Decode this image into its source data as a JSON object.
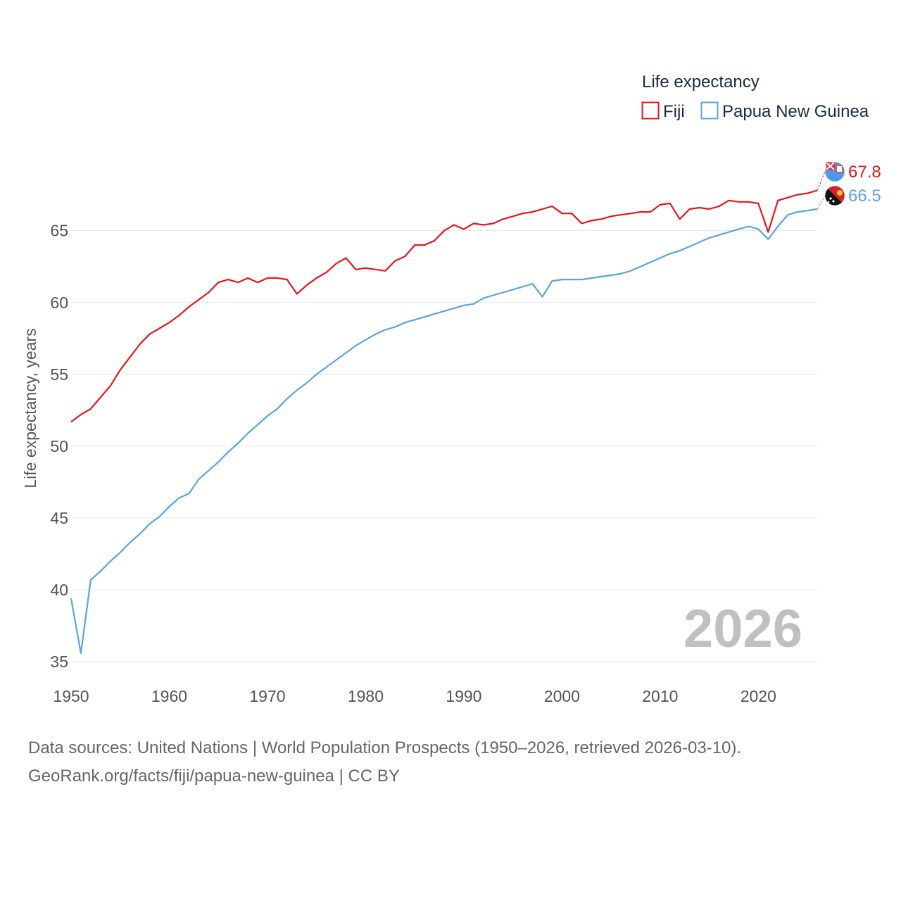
{
  "chart_data": {
    "type": "line",
    "legend_title": "Life expectancy",
    "ylabel": "Life expectancy, years",
    "xlabel": "",
    "xlim": [
      1950,
      2026
    ],
    "ylim": [
      33,
      69
    ],
    "x_ticks": [
      1950,
      1960,
      1970,
      1980,
      1990,
      2000,
      2010,
      2020
    ],
    "y_ticks": [
      35,
      40,
      45,
      50,
      55,
      60,
      65
    ],
    "current_year_label": "2026",
    "grid": true,
    "legend_position": "top-right",
    "x": [
      1950,
      1951,
      1952,
      1953,
      1954,
      1955,
      1956,
      1957,
      1958,
      1959,
      1960,
      1961,
      1962,
      1963,
      1964,
      1965,
      1966,
      1967,
      1968,
      1969,
      1970,
      1971,
      1972,
      1973,
      1974,
      1975,
      1976,
      1977,
      1978,
      1979,
      1980,
      1981,
      1982,
      1983,
      1984,
      1985,
      1986,
      1987,
      1988,
      1989,
      1990,
      1991,
      1992,
      1993,
      1994,
      1995,
      1996,
      1997,
      1998,
      1999,
      2000,
      2001,
      2002,
      2003,
      2004,
      2005,
      2006,
      2007,
      2008,
      2009,
      2010,
      2011,
      2012,
      2013,
      2014,
      2015,
      2016,
      2017,
      2018,
      2019,
      2020,
      2021,
      2022,
      2023,
      2024,
      2025,
      2026
    ],
    "series": [
      {
        "name": "Fiji",
        "color": "#e8151b",
        "end_value_label": "67.8",
        "flag_icon": "fiji-flag-icon",
        "values": [
          51.7,
          52.2,
          52.6,
          53.4,
          54.2,
          55.3,
          56.2,
          57.1,
          57.8,
          58.2,
          58.6,
          59.1,
          59.7,
          60.2,
          60.7,
          61.4,
          61.6,
          61.4,
          61.7,
          61.4,
          61.7,
          61.7,
          61.6,
          60.6,
          61.2,
          61.7,
          62.1,
          62.7,
          63.1,
          62.3,
          62.4,
          62.3,
          62.2,
          62.9,
          63.2,
          64.0,
          64.0,
          64.3,
          65.0,
          65.4,
          65.1,
          65.5,
          65.4,
          65.5,
          65.8,
          66.0,
          66.2,
          66.3,
          66.5,
          66.7,
          66.2,
          66.2,
          65.5,
          65.7,
          65.8,
          66.0,
          66.1,
          66.2,
          66.3,
          66.3,
          66.8,
          66.9,
          65.8,
          66.5,
          66.6,
          66.5,
          66.7,
          67.1,
          67.0,
          67.0,
          66.9,
          64.9,
          67.1,
          67.3,
          67.5,
          67.6,
          67.8
        ]
      },
      {
        "name": "Papua New Guinea",
        "color": "#5ba3e5",
        "end_value_label": "66.5",
        "flag_icon": "papua-new-guinea-flag-icon",
        "values": [
          39.4,
          35.6,
          40.7,
          41.3,
          42.0,
          42.6,
          43.3,
          43.9,
          44.6,
          45.1,
          45.8,
          46.4,
          46.7,
          47.7,
          48.3,
          48.9,
          49.6,
          50.2,
          50.9,
          51.5,
          52.1,
          52.6,
          53.3,
          53.9,
          54.4,
          55.0,
          55.5,
          56.0,
          56.5,
          57.0,
          57.4,
          57.8,
          58.1,
          58.3,
          58.6,
          58.8,
          59.0,
          59.2,
          59.4,
          59.6,
          59.8,
          59.9,
          60.3,
          60.5,
          60.7,
          60.9,
          61.1,
          61.3,
          60.4,
          61.5,
          61.6,
          61.6,
          61.6,
          61.7,
          61.8,
          61.9,
          62.0,
          62.2,
          62.5,
          62.8,
          63.1,
          63.4,
          63.6,
          63.9,
          64.2,
          64.5,
          64.7,
          64.9,
          65.1,
          65.3,
          65.1,
          64.4,
          65.3,
          66.1,
          66.3,
          66.4,
          66.5
        ]
      }
    ]
  },
  "footer": {
    "source_line": "Data sources: United Nations | World Population Prospects (1950–2026, retrieved 2026-03-10).",
    "url_line": "GeoRank.org/facts/fiji/papua-new-guinea | CC BY"
  }
}
